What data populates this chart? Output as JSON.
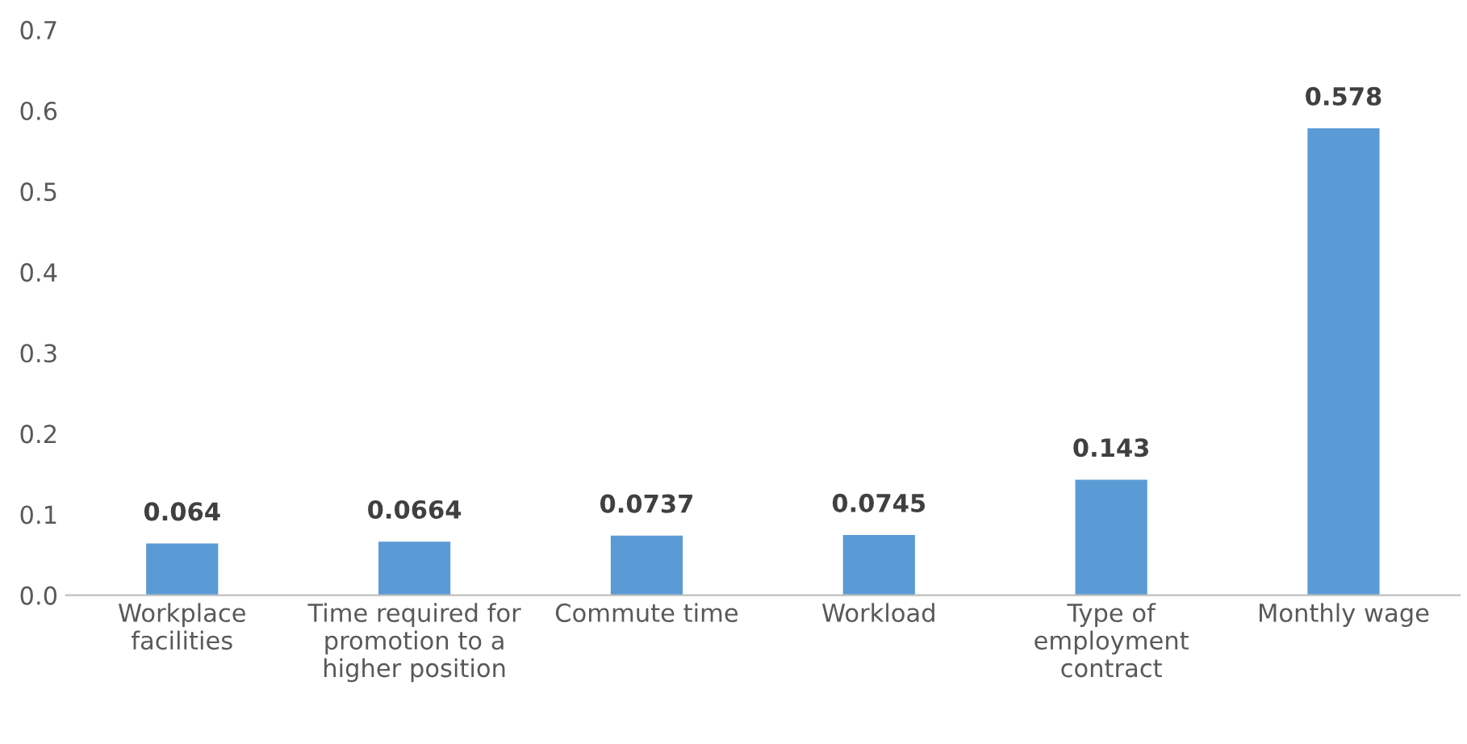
{
  "chart_data": {
    "type": "bar",
    "categories": [
      "Workplace facilities",
      "Time required for promotion to a higher position",
      "Commute time",
      "Workload",
      "Type of employment contract",
      "Monthly wage"
    ],
    "values": [
      0.064,
      0.0664,
      0.0737,
      0.0745,
      0.143,
      0.578
    ],
    "color": "#5b9bd5",
    "ylim": [
      0,
      0.7
    ],
    "yticks": [
      {
        "value": 0,
        "label": "0.0"
      },
      0.1,
      0.2,
      0.3,
      0.4,
      0.5,
      0.6,
      0.7
    ],
    "data_labels": true,
    "grid": false
  }
}
